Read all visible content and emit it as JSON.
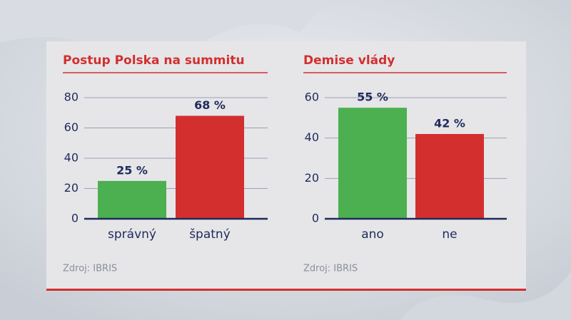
{
  "chart_data": [
    {
      "type": "bar",
      "title": "Postup Polska na summitu",
      "categories": [
        "správný",
        "špatný"
      ],
      "values": [
        25,
        68
      ],
      "value_labels": [
        "25 %",
        "68 %"
      ],
      "colors": [
        "#4caf50",
        "#d32f2f"
      ],
      "ylim": [
        0,
        80
      ],
      "yticks": [
        0,
        20,
        40,
        60,
        80
      ],
      "grid": true,
      "source": "Zdroj: IBRIS"
    },
    {
      "type": "bar",
      "title": "Demise vlády",
      "categories": [
        "ano",
        "ne"
      ],
      "values": [
        55,
        42
      ],
      "value_labels": [
        "55 %",
        "42 %"
      ],
      "colors": [
        "#4caf50",
        "#d32f2f"
      ],
      "ylim": [
        0,
        60
      ],
      "yticks": [
        0,
        20,
        40,
        60
      ],
      "grid": true,
      "source": "Zdroj: IBRIS"
    }
  ]
}
